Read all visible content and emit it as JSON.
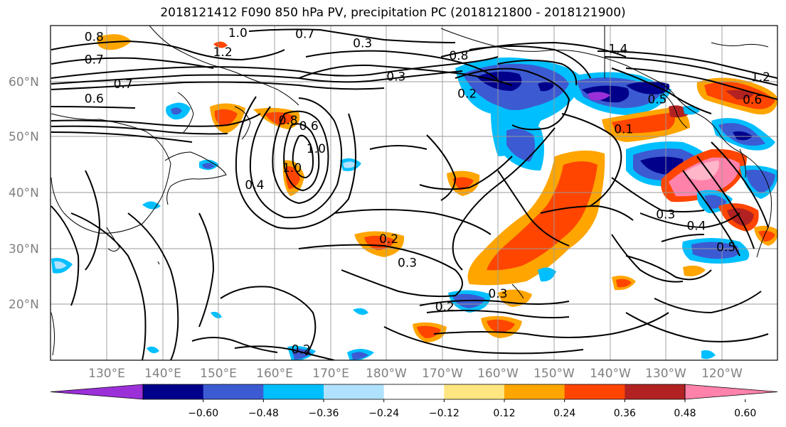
{
  "title": "2018121412 F090 850 hPa PV, precipitation PC (2018121800 - 2018121900)",
  "chart_data": {
    "type": "map-contour",
    "lat_ticks": [
      "60°N",
      "50°N",
      "40°N",
      "30°N",
      "20°N"
    ],
    "lat_values": [
      60,
      50,
      40,
      30,
      20
    ],
    "lon_ticks": [
      "130°E",
      "140°E",
      "150°E",
      "160°E",
      "170°E",
      "180°W",
      "170°W",
      "160°W",
      "150°W",
      "140°W",
      "130°W",
      "120°W"
    ],
    "lon_values": [
      130,
      140,
      150,
      160,
      170,
      180,
      190,
      200,
      210,
      220,
      230,
      240
    ],
    "lon_range": [
      120,
      250
    ],
    "lat_range": [
      10,
      69
    ],
    "grid": true,
    "colorbar": {
      "tick_labels": [
        "−0.60",
        "−0.48",
        "−0.36",
        "−0.24",
        "−0.12",
        "0.12",
        "0.24",
        "0.36",
        "0.48",
        "0.60"
      ],
      "tick_values": [
        -0.6,
        -0.48,
        -0.36,
        -0.24,
        -0.12,
        0.12,
        0.24,
        0.36,
        0.48,
        0.6
      ],
      "colors": [
        "#9b30d9",
        "#00008b",
        "#3c5bd2",
        "#00bfff",
        "#b0e2ff",
        "#ffffff",
        "#ffe680",
        "#ffa500",
        "#ff4500",
        "#b22222",
        "#ff82ab"
      ],
      "extend": "both"
    },
    "contour_labels": [
      {
        "text": "0.8",
        "lon": 127.8,
        "lat": 66.3
      },
      {
        "text": "1.0",
        "lon": 153.5,
        "lat": 67.0
      },
      {
        "text": "0.7",
        "lon": 165.5,
        "lat": 66.8
      },
      {
        "text": "1.2",
        "lon": 150.8,
        "lat": 63.6
      },
      {
        "text": "0.7",
        "lon": 127.8,
        "lat": 62.3
      },
      {
        "text": "0.7",
        "lon": 133.0,
        "lat": 58.0
      },
      {
        "text": "0.6",
        "lon": 127.8,
        "lat": 55.4
      },
      {
        "text": "0.8",
        "lon": 162.5,
        "lat": 51.6
      },
      {
        "text": "0.6",
        "lon": 166.2,
        "lat": 50.6
      },
      {
        "text": "1.0",
        "lon": 167.5,
        "lat": 46.6
      },
      {
        "text": "1.0",
        "lon": 163.2,
        "lat": 43.2
      },
      {
        "text": "0.4",
        "lon": 156.5,
        "lat": 40.2
      },
      {
        "text": "0.3",
        "lon": 175.8,
        "lat": 65.2
      },
      {
        "text": "0.8",
        "lon": 193.0,
        "lat": 63.0
      },
      {
        "text": "0.3",
        "lon": 181.8,
        "lat": 59.3
      },
      {
        "text": "0.2",
        "lon": 194.5,
        "lat": 56.3
      },
      {
        "text": "1.4",
        "lon": 221.5,
        "lat": 64.2
      },
      {
        "text": "0.5",
        "lon": 228.5,
        "lat": 55.3
      },
      {
        "text": "0.1",
        "lon": 222.5,
        "lat": 50.0
      },
      {
        "text": "1.2",
        "lon": 247.0,
        "lat": 59.2
      },
      {
        "text": "0.6",
        "lon": 245.5,
        "lat": 55.2
      },
      {
        "text": "0.2",
        "lon": 180.5,
        "lat": 30.7
      },
      {
        "text": "0.3",
        "lon": 183.8,
        "lat": 26.5
      },
      {
        "text": "0.2",
        "lon": 190.5,
        "lat": 18.7
      },
      {
        "text": "0.3",
        "lon": 200.0,
        "lat": 21.0
      },
      {
        "text": "0.3",
        "lon": 230.0,
        "lat": 35.0
      },
      {
        "text": "0.4",
        "lon": 235.5,
        "lat": 33.0
      },
      {
        "text": "0.5",
        "lon": 240.8,
        "lat": 29.2
      },
      {
        "text": "0.2",
        "lon": 164.8,
        "lat": 11.2
      }
    ]
  }
}
